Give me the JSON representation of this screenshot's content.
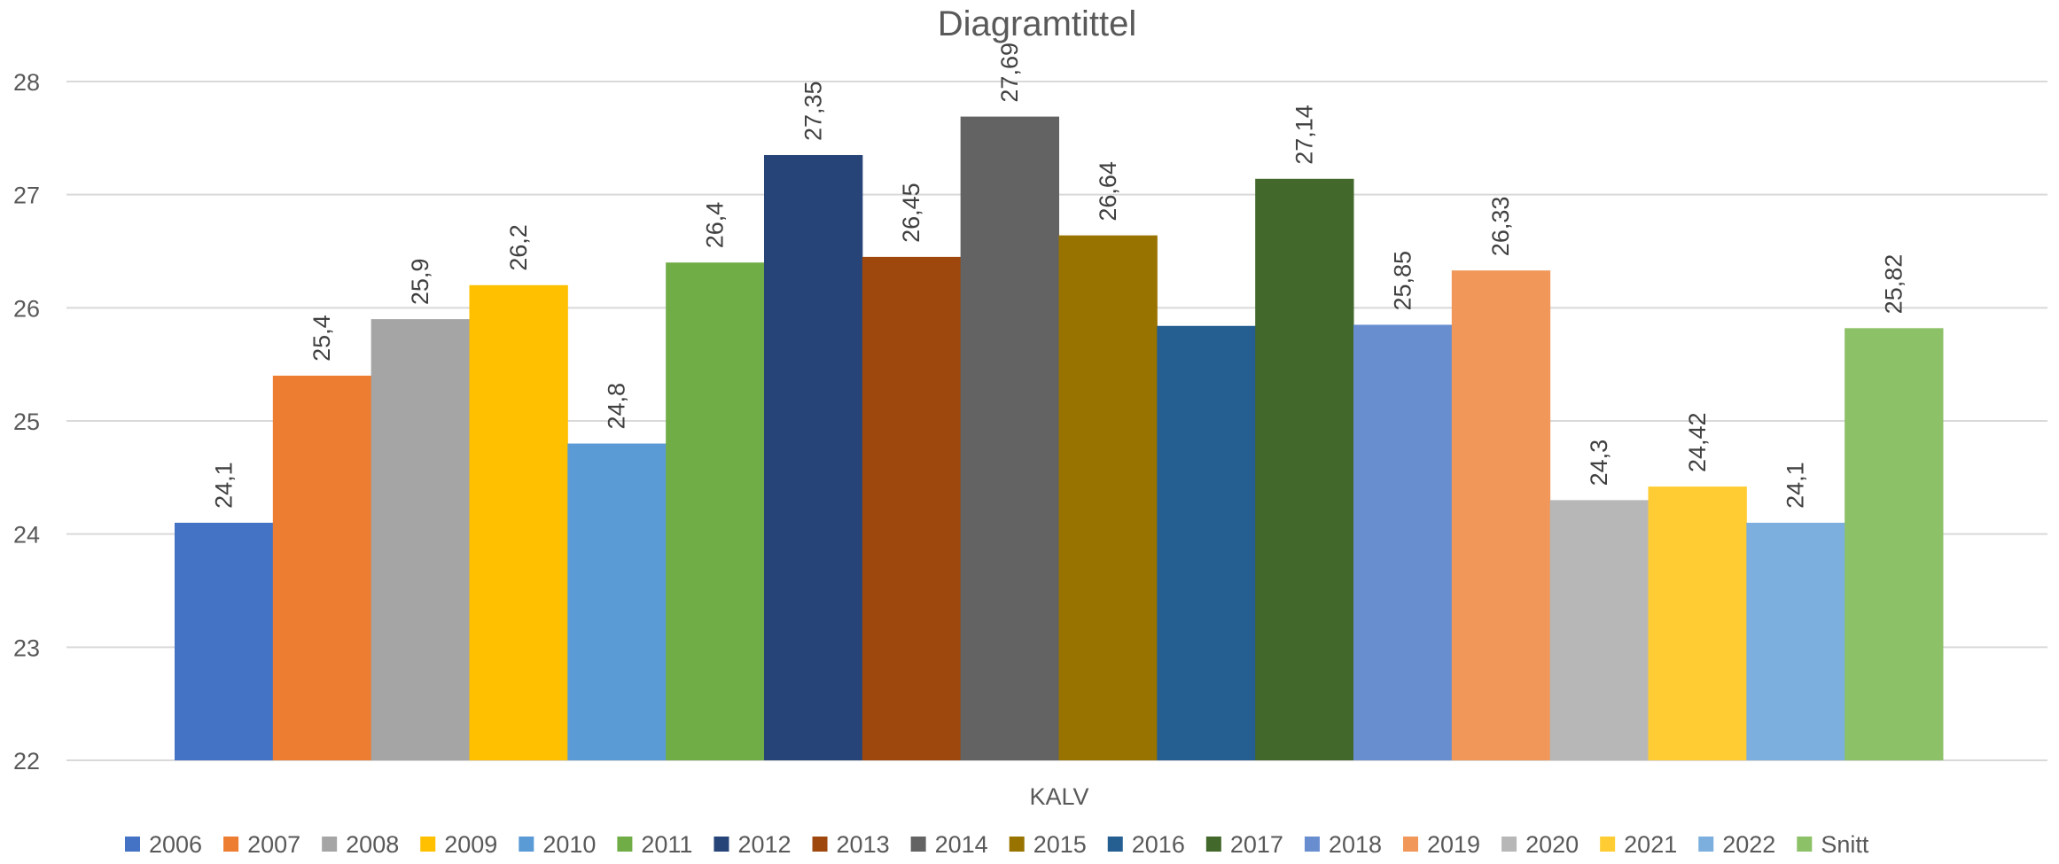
{
  "chart_data": {
    "type": "bar",
    "title": "Diagramtittel",
    "xlabel": "",
    "ylabel": "",
    "categories": [
      "KALV"
    ],
    "ylim": [
      22,
      28
    ],
    "yticks": [
      22,
      23,
      24,
      25,
      26,
      27,
      28
    ],
    "grid": true,
    "legend_position": "bottom",
    "series": [
      {
        "name": "2006",
        "values": [
          24.1
        ],
        "label": "24,1",
        "color": "#4472C4"
      },
      {
        "name": "2007",
        "values": [
          25.4
        ],
        "label": "25,4",
        "color": "#ED7D31"
      },
      {
        "name": "2008",
        "values": [
          25.9
        ],
        "label": "25,9",
        "color": "#A5A5A5"
      },
      {
        "name": "2009",
        "values": [
          26.2
        ],
        "label": "26,2",
        "color": "#FFC000"
      },
      {
        "name": "2010",
        "values": [
          24.8
        ],
        "label": "24,8",
        "color": "#5B9BD5"
      },
      {
        "name": "2011",
        "values": [
          26.4
        ],
        "label": "26,4",
        "color": "#70AD47"
      },
      {
        "name": "2012",
        "values": [
          27.35
        ],
        "label": "27,35",
        "color": "#264478"
      },
      {
        "name": "2013",
        "values": [
          26.45
        ],
        "label": "26,45",
        "color": "#9E480E"
      },
      {
        "name": "2014",
        "values": [
          27.69
        ],
        "label": "27,69",
        "color": "#636363"
      },
      {
        "name": "2015",
        "values": [
          26.64
        ],
        "label": "26,64",
        "color": "#997300"
      },
      {
        "name": "2016",
        "values": [
          25.84
        ],
        "label": "",
        "color": "#255E91"
      },
      {
        "name": "2017",
        "values": [
          27.14
        ],
        "label": "27,14",
        "color": "#43682B"
      },
      {
        "name": "2018",
        "values": [
          25.85
        ],
        "label": "25,85",
        "color": "#698ED0"
      },
      {
        "name": "2019",
        "values": [
          26.33
        ],
        "label": "26,33",
        "color": "#F1975A"
      },
      {
        "name": "2020",
        "values": [
          24.3
        ],
        "label": "24,3",
        "color": "#B7B7B7"
      },
      {
        "name": "2021",
        "values": [
          24.42
        ],
        "label": "24,42",
        "color": "#FFCD33"
      },
      {
        "name": "2022",
        "values": [
          24.1
        ],
        "label": "24,1",
        "color": "#7CAFDD"
      },
      {
        "name": "Snitt",
        "values": [
          25.82
        ],
        "label": "25,82",
        "color": "#8CC168"
      }
    ]
  }
}
